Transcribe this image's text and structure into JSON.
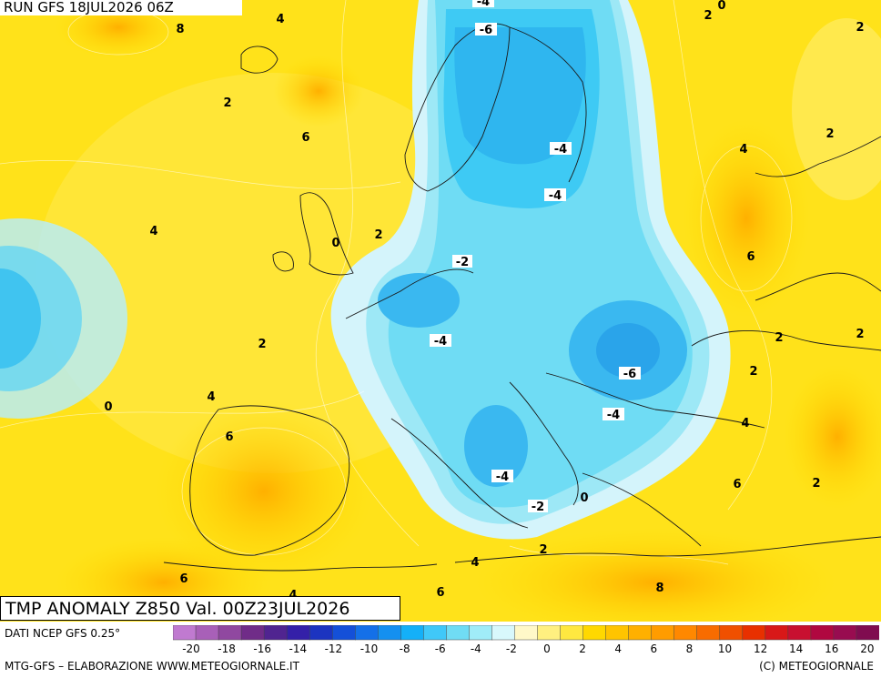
{
  "header": {
    "run_label": "RUN GFS 18JUL2026 06Z"
  },
  "map": {
    "title": "TMP ANOMALY Z850 Val. 00Z23JUL2026",
    "contour_labels": [
      "-4",
      "-6",
      "-4",
      "-4",
      "-2",
      "-4",
      "-6",
      "-4",
      "-4",
      "-2",
      "0",
      "0",
      "0",
      "2",
      "2",
      "2",
      "2",
      "2",
      "2",
      "2",
      "2",
      "2",
      "4",
      "4",
      "4",
      "4",
      "4",
      "4",
      "4",
      "6",
      "6",
      "6",
      "6",
      "6",
      "6",
      "8",
      "8",
      "2",
      "0",
      "2"
    ]
  },
  "colorbar": {
    "ticks": [
      "-20",
      "-18",
      "-16",
      "-14",
      "-12",
      "-10",
      "-8",
      "-6",
      "-4",
      "-2",
      "0",
      "2",
      "4",
      "6",
      "8",
      "10",
      "12",
      "14",
      "16",
      "20"
    ],
    "colors": [
      "#c07ad0",
      "#a860b8",
      "#9048a0",
      "#702c88",
      "#502490",
      "#3420a8",
      "#1c34c0",
      "#1450d8",
      "#1470e8",
      "#1490f0",
      "#14b0f8",
      "#40c8f8",
      "#70dcf4",
      "#a0ecf8",
      "#d8f8fc",
      "#fff8c8",
      "#fff080",
      "#ffe840",
      "#ffd800",
      "#ffc400",
      "#ffb000",
      "#ff9c00",
      "#ff8800",
      "#f86c00",
      "#f05000",
      "#e83000",
      "#d81818",
      "#c81030",
      "#b00840",
      "#980c50",
      "#800c50"
    ]
  },
  "footer": {
    "source": "DATI NCEP GFS 0.25°",
    "credit_left": "MTG-GFS – ELABORAZIONE WWW.METEOGIORNALE.IT",
    "credit_right": "(C) METEOGIORNALE"
  }
}
